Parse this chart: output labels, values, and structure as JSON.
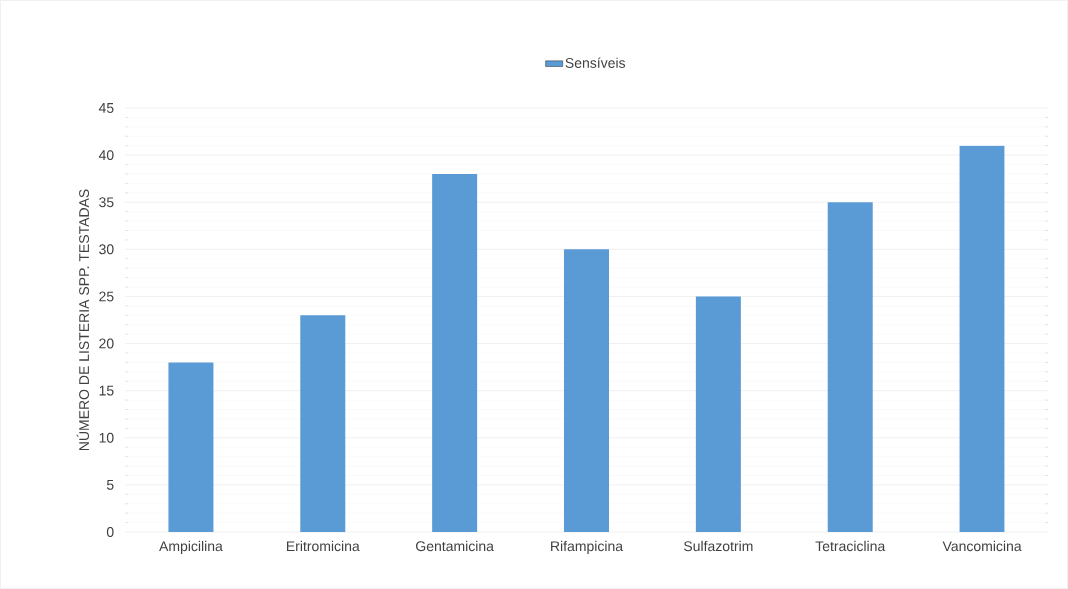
{
  "chart_data": {
    "type": "bar",
    "ylabel": "NÚMERO DE LISTERIA SPP. TESTADAS",
    "categories": [
      "Ampicilina",
      "Eritromicina",
      "Gentamicina",
      "Rifampicina",
      "Sulfazotrim",
      "Tetraciclina",
      "Vancomicina"
    ],
    "series": [
      {
        "name": "Sensíveis",
        "color": "#5b9bd5",
        "values": [
          18,
          23,
          38,
          30,
          25,
          35,
          41
        ]
      }
    ],
    "ylim": [
      0,
      45
    ],
    "yticks": [
      0,
      5,
      10,
      15,
      20,
      25,
      30,
      35,
      40,
      45
    ],
    "grid": "y",
    "legend": "top"
  }
}
